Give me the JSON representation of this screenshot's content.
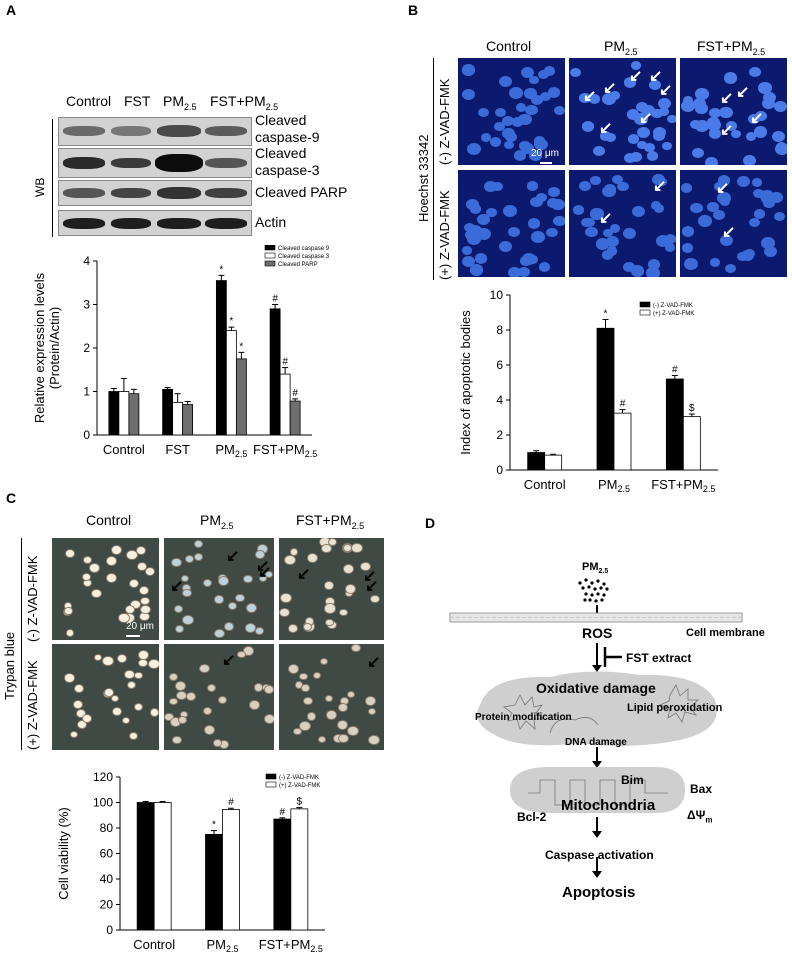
{
  "panelA": {
    "letter": "A",
    "lanes": [
      "Control",
      "FST",
      "PM",
      "2.5",
      "FST+PM",
      "2.5"
    ],
    "wb_label": "WB",
    "blots": [
      "Cleaved caspase-9",
      "Cleaved caspase-3",
      "Cleaved PARP",
      "Actin"
    ],
    "blot_lines": [
      [
        "Cleaved",
        "caspase-9"
      ],
      [
        "Cleaved",
        "caspase-3"
      ],
      [
        "Cleaved PARP"
      ],
      [
        "Actin"
      ]
    ]
  },
  "panelB": {
    "letter": "B",
    "cols": [
      "Control",
      "PM",
      "2.5",
      "FST+PM",
      "2.5"
    ],
    "stain": "Hoechst 33342",
    "row1": "(-) Z-VAD-FMK",
    "row2": "(+) Z-VAD-FMK",
    "scale": "20 μm"
  },
  "panelC": {
    "letter": "C",
    "cols": [
      "Control",
      "PM",
      "2.5",
      "FST+PM",
      "2.5"
    ],
    "stain": "Trypan blue",
    "row1": "(-) Z-VAD-FMK",
    "row2": "(+) Z-VAD-FMK",
    "scale": "20 μm"
  },
  "panelD": {
    "letter": "D",
    "pm": "PM",
    "pm_sub": "2.5",
    "ros": "ROS",
    "membrane": "Cell membrane",
    "fst": "FST extract",
    "oxdmg": "Oxidative damage",
    "prot": "Protein modification",
    "lipid": "Lipid peroxidation",
    "dna": "DNA damage",
    "bim": "Bim",
    "bax": "Bax",
    "mito": "Mitochondria",
    "bcl2": "Bcl-2",
    "psi": "ΔΨ",
    "psi_sub": "m",
    "casp": "Caspase activation",
    "apop": "Apoptosis"
  },
  "chart_data": [
    {
      "type": "bar",
      "categories": [
        "Control",
        "FST",
        "PM2.5",
        "FST+PM2.5"
      ],
      "series": [
        {
          "name": "Cleaved caspase 9",
          "values": [
            1.0,
            1.05,
            3.55,
            2.9
          ],
          "errors": [
            0.07,
            0.04,
            0.12,
            0.1
          ],
          "marks": [
            "",
            "",
            "*",
            "#"
          ],
          "color": "#000000"
        },
        {
          "name": "Cleaved caspase 3",
          "values": [
            1.0,
            0.75,
            2.4,
            1.4
          ],
          "errors": [
            0.3,
            0.2,
            0.08,
            0.15
          ],
          "marks": [
            "",
            "",
            "*",
            "#"
          ],
          "color": "#ffffff"
        },
        {
          "name": "Cleaved PARP",
          "values": [
            0.95,
            0.7,
            1.75,
            0.78
          ],
          "errors": [
            0.1,
            0.07,
            0.15,
            0.05
          ],
          "marks": [
            "",
            "",
            "*",
            "#"
          ],
          "color": "#6e6e6e"
        }
      ],
      "ylabel": "Relative expression levels (Protein/Actin)",
      "ylim": [
        0,
        4
      ],
      "yticks": [
        "0",
        "1",
        "2",
        "3",
        "4"
      ],
      "legend": "top-right"
    },
    {
      "type": "bar",
      "categories": [
        "Control",
        "PM2.5",
        "FST+PM2.5"
      ],
      "series": [
        {
          "name": "(-) Z-VAD-FMK",
          "values": [
            1.0,
            8.1,
            5.2
          ],
          "errors": [
            0.1,
            0.5,
            0.2
          ],
          "marks": [
            "",
            "*",
            "#"
          ],
          "color": "#000000"
        },
        {
          "name": "(+) Z-VAD-FMK",
          "values": [
            0.85,
            3.25,
            3.05
          ],
          "errors": [
            0.05,
            0.2,
            0.15
          ],
          "marks": [
            "",
            "#",
            "$"
          ],
          "color": "#ffffff"
        }
      ],
      "ylabel": "Index of apoptotic bodies",
      "ylim": [
        0,
        10
      ],
      "yticks": [
        "0",
        "2",
        "4",
        "6",
        "8",
        "10"
      ],
      "legend": "top-right"
    },
    {
      "type": "bar",
      "categories": [
        "Control",
        "PM2.5",
        "FST+PM2.5"
      ],
      "series": [
        {
          "name": "(-) Z-VAD-FMK",
          "values": [
            100,
            75,
            87
          ],
          "errors": [
            0.8,
            3,
            1
          ],
          "marks": [
            "",
            "*",
            "#"
          ],
          "color": "#000000"
        },
        {
          "name": "(+) Z-VAD-FMK",
          "values": [
            100,
            94.5,
            95
          ],
          "errors": [
            0.8,
            1,
            1
          ],
          "marks": [
            "",
            "#",
            "$"
          ],
          "color": "#ffffff"
        }
      ],
      "ylabel": "Cell viability (%)",
      "ylim": [
        0,
        120
      ],
      "yticks": [
        "0",
        "20",
        "40",
        "60",
        "80",
        "100",
        "120"
      ],
      "legend": "top-right"
    }
  ]
}
